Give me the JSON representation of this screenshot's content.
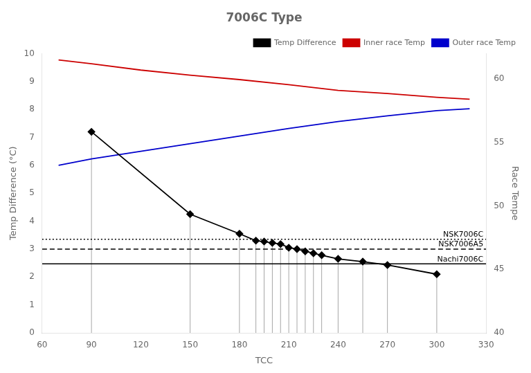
{
  "chart_data": {
    "type": "line",
    "title": "7006C Type",
    "xlabel": "TCC",
    "ylabel": "Temp Difference (°C)",
    "y2label": "Race Tempe",
    "xlim": [
      60,
      330
    ],
    "xticks": [
      60,
      90,
      120,
      150,
      180,
      210,
      240,
      270,
      300,
      330
    ],
    "ylim": [
      0,
      10
    ],
    "yticks": [
      0,
      1,
      2,
      3,
      4,
      5,
      6,
      7,
      8,
      9,
      10
    ],
    "y2lim": [
      40,
      62
    ],
    "y2ticks": [
      40,
      45,
      50,
      55,
      60
    ],
    "grid": false,
    "legend": "upper right",
    "series": [
      {
        "name": "Temp Difference",
        "color": "black",
        "marker": "diamond",
        "line_style": "solid",
        "axis": "y",
        "x": [
          90,
          150,
          180,
          190,
          195,
          200,
          205,
          210,
          215,
          220,
          225,
          230,
          240,
          255,
          270,
          300
        ],
        "values": [
          7.2,
          4.25,
          3.55,
          3.3,
          3.27,
          3.22,
          3.18,
          3.05,
          3.0,
          2.92,
          2.85,
          2.78,
          2.65,
          2.55,
          2.43,
          2.1
        ]
      },
      {
        "name": "Inner race Temp",
        "color": "#cc0000",
        "marker": "none",
        "line_style": "solid",
        "axis": "y2",
        "x": [
          70,
          90,
          120,
          150,
          180,
          210,
          240,
          270,
          300,
          320
        ],
        "values": [
          61.5,
          61.2,
          60.7,
          60.3,
          59.95,
          59.55,
          59.1,
          58.85,
          58.55,
          58.4
        ]
      },
      {
        "name": "Outer race Temp",
        "color": "#0000cc",
        "marker": "none",
        "line_style": "solid",
        "axis": "y2",
        "x": [
          70,
          90,
          120,
          150,
          180,
          210,
          240,
          270,
          300,
          320
        ],
        "values": [
          53.2,
          53.7,
          54.3,
          54.9,
          55.5,
          56.1,
          56.65,
          57.1,
          57.5,
          57.65
        ]
      }
    ],
    "reference_lines": [
      {
        "value": 3.35,
        "label": "NSK7006C",
        "line_style": "dotted",
        "color": "black",
        "axis": "y"
      },
      {
        "value": 3.0,
        "label": "NSK7006A5",
        "line_style": "dashed",
        "color": "black",
        "axis": "y"
      },
      {
        "value": 2.47,
        "label": "Nachi7006C",
        "line_style": "solid",
        "color": "black",
        "axis": "y"
      }
    ]
  }
}
